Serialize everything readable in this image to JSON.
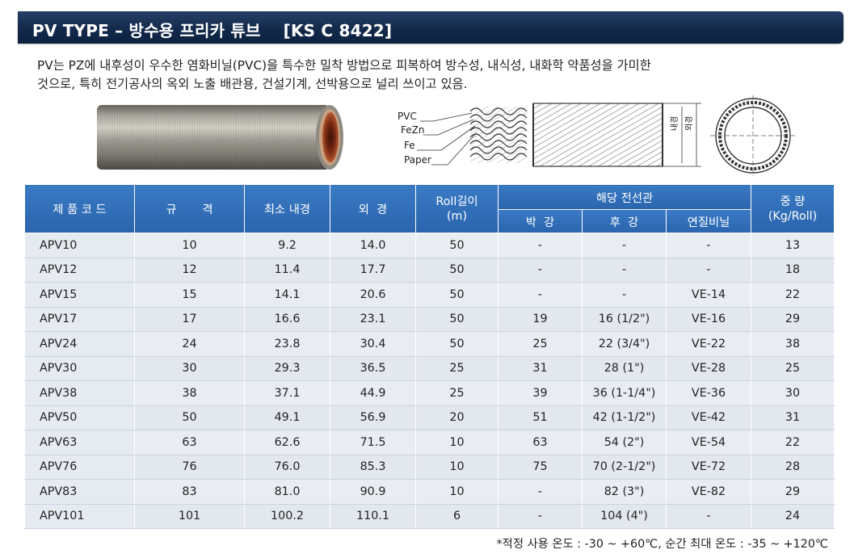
{
  "header": {
    "title": "PV TYPE – 방수용 프리카 튜브",
    "standard": "[KS C 8422]"
  },
  "description": {
    "line1": "PV는 PZ에 내후성이 우수한 염화비닐(PVC)을 특수한 밀착 방법으로 피복하여 방수성, 내식성, 내화학 약품성을 가미한",
    "line2": "것으로, 특히 전기공사의 옥외 노출 배관용, 건설기계, 선박용으로 널리 쓰이고 있음."
  },
  "diagram": {
    "layers": [
      "PVC",
      "FeZn",
      "Fe",
      "Paper"
    ],
    "inner_label": "내경",
    "outer_label": "외경"
  },
  "table": {
    "headers": {
      "code": "제 품 코 드",
      "size": "규       격",
      "min_inner": "최소 내경",
      "outer": "외  경",
      "roll_length": "Roll길이\n(m)",
      "conduit_group": "해당 전선관",
      "thin": "박  강",
      "thick": "후  강",
      "soft_vinyl": "연질비닐",
      "weight": "중  량\n(Kg/Roll)"
    },
    "rows": [
      {
        "code": "APV10",
        "size": "10",
        "min_inner": "9.2",
        "outer": "14.0",
        "roll": "50",
        "thin": "-",
        "thick": "-",
        "soft": "-",
        "weight": "13"
      },
      {
        "code": "APV12",
        "size": "12",
        "min_inner": "11.4",
        "outer": "17.7",
        "roll": "50",
        "thin": "-",
        "thick": "-",
        "soft": "-",
        "weight": "18"
      },
      {
        "code": "APV15",
        "size": "15",
        "min_inner": "14.1",
        "outer": "20.6",
        "roll": "50",
        "thin": "-",
        "thick": "-",
        "soft": "VE-14",
        "weight": "22"
      },
      {
        "code": "APV17",
        "size": "17",
        "min_inner": "16.6",
        "outer": "23.1",
        "roll": "50",
        "thin": "19",
        "thick": "16 (1/2\")",
        "soft": "VE-16",
        "weight": "29"
      },
      {
        "code": "APV24",
        "size": "24",
        "min_inner": "23.8",
        "outer": "30.4",
        "roll": "50",
        "thin": "25",
        "thick": "22 (3/4\")",
        "soft": "VE-22",
        "weight": "38"
      },
      {
        "code": "APV30",
        "size": "30",
        "min_inner": "29.3",
        "outer": "36.5",
        "roll": "25",
        "thin": "31",
        "thick": "28 (1\")",
        "soft": "VE-28",
        "weight": "25"
      },
      {
        "code": "APV38",
        "size": "38",
        "min_inner": "37.1",
        "outer": "44.9",
        "roll": "25",
        "thin": "39",
        "thick": "36 (1-1/4\")",
        "soft": "VE-36",
        "weight": "30"
      },
      {
        "code": "APV50",
        "size": "50",
        "min_inner": "49.1",
        "outer": "56.9",
        "roll": "20",
        "thin": "51",
        "thick": "42 (1-1/2\")",
        "soft": "VE-42",
        "weight": "31"
      },
      {
        "code": "APV63",
        "size": "63",
        "min_inner": "62.6",
        "outer": "71.5",
        "roll": "10",
        "thin": "63",
        "thick": "54 (2\")",
        "soft": "VE-54",
        "weight": "22"
      },
      {
        "code": "APV76",
        "size": "76",
        "min_inner": "76.0",
        "outer": "85.3",
        "roll": "10",
        "thin": "75",
        "thick": "70 (2-1/2\")",
        "soft": "VE-72",
        "weight": "28"
      },
      {
        "code": "APV83",
        "size": "83",
        "min_inner": "81.0",
        "outer": "90.9",
        "roll": "10",
        "thin": "-",
        "thick": "82 (3\")",
        "soft": "VE-82",
        "weight": "29"
      },
      {
        "code": "APV101",
        "size": "101",
        "min_inner": "100.2",
        "outer": "110.1",
        "roll": "6",
        "thin": "-",
        "thick": "104 (4\")",
        "soft": "-",
        "weight": "24"
      }
    ]
  },
  "footnote": "*적정 사용 온도 : -30 ~ +60℃, 순간 최대 온도 : -35 ~ +120℃"
}
